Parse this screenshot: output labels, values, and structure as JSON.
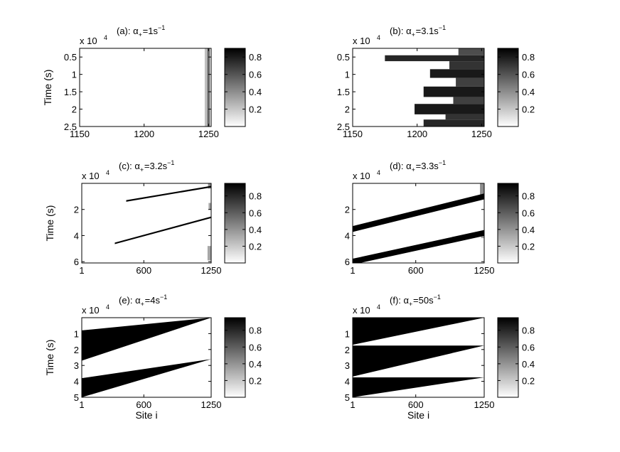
{
  "chart_data": [
    {
      "type": "heatmap",
      "panel": "a",
      "title": {
        "prefix": "(a): α",
        "subscript": "+",
        "value": "=1s",
        "exponent": "−1"
      },
      "exponent_label": {
        "base": "x 10",
        "power": "4"
      },
      "ylabel": "Time (s)",
      "xlabel": "",
      "xticks": [
        "1150",
        "1200",
        "1250"
      ],
      "yticks": [
        "0.5",
        "1",
        "1.5",
        "2",
        "2.5"
      ],
      "xlim": [
        1150,
        1252
      ],
      "ylim": [
        0.25,
        2.5
      ],
      "colorbar_ticks": [
        "0.8",
        "0.6",
        "0.4",
        "0.2"
      ],
      "colorbar_range": [
        0,
        0.9
      ],
      "strips": [
        {
          "t0": 0.25,
          "t1": 2.5,
          "x0": 1247,
          "x1": 1249,
          "density": 0.25
        },
        {
          "t0": 0.25,
          "t1": 2.5,
          "x0": 1249,
          "x1": 1251,
          "density": 0.6
        }
      ]
    },
    {
      "type": "heatmap",
      "panel": "b",
      "title": {
        "prefix": "(b): α",
        "subscript": "+",
        "value": "=3.1s",
        "exponent": "−1"
      },
      "exponent_label": {
        "base": "x 10",
        "power": "4"
      },
      "ylabel": "",
      "xlabel": "",
      "xticks": [
        "1150",
        "1200",
        "1250"
      ],
      "yticks": [
        "0.5",
        "1",
        "1.5",
        "2",
        "2.5"
      ],
      "xlim": [
        1150,
        1252
      ],
      "ylim": [
        0.25,
        2.5
      ],
      "colorbar_ticks": [
        "0.8",
        "0.6",
        "0.4",
        "0.2"
      ],
      "colorbar_range": [
        0,
        0.9
      ],
      "strips": [
        {
          "t0": 0.25,
          "t1": 0.45,
          "x0": 1232,
          "x1": 1252,
          "density": 0.7
        },
        {
          "t0": 0.45,
          "t1": 0.62,
          "x0": 1175,
          "x1": 1252,
          "density": 0.85
        },
        {
          "t0": 0.62,
          "t1": 0.85,
          "x0": 1225,
          "x1": 1252,
          "density": 0.8
        },
        {
          "t0": 0.85,
          "t1": 1.1,
          "x0": 1210,
          "x1": 1252,
          "density": 0.9
        },
        {
          "t0": 1.1,
          "t1": 1.35,
          "x0": 1230,
          "x1": 1252,
          "density": 0.75
        },
        {
          "t0": 1.35,
          "t1": 1.65,
          "x0": 1205,
          "x1": 1252,
          "density": 0.9
        },
        {
          "t0": 1.65,
          "t1": 1.85,
          "x0": 1228,
          "x1": 1252,
          "density": 0.75
        },
        {
          "t0": 1.85,
          "t1": 2.15,
          "x0": 1198,
          "x1": 1252,
          "density": 0.9
        },
        {
          "t0": 2.15,
          "t1": 2.3,
          "x0": 1222,
          "x1": 1252,
          "density": 0.8
        },
        {
          "t0": 2.3,
          "t1": 2.5,
          "x0": 1205,
          "x1": 1252,
          "density": 0.85
        }
      ]
    },
    {
      "type": "heatmap",
      "panel": "c",
      "title": {
        "prefix": "(c): α",
        "subscript": "+",
        "value": "=3.2s",
        "exponent": "−1"
      },
      "exponent_label": {
        "base": "x 10",
        "power": "4"
      },
      "ylabel": "Time (s)",
      "xlabel": "",
      "xticks": [
        "1",
        "600",
        "1250"
      ],
      "yticks": [
        "2",
        "4",
        "6"
      ],
      "xlim": [
        1,
        1250
      ],
      "ylim": [
        0,
        6.1
      ],
      "colorbar_ticks": [
        "0.8",
        "0.6",
        "0.4",
        "0.2"
      ],
      "colorbar_range": [
        0,
        0.95
      ],
      "bands": [
        {
          "x0": 430,
          "t_start": 1.35,
          "x1": 1250,
          "t_end": 0.25,
          "thickness": 0.12
        },
        {
          "x0": 320,
          "t_start": 4.6,
          "x1": 1250,
          "t_end": 2.6,
          "thickness": 0.12
        }
      ],
      "strips": [
        {
          "t0": 0.0,
          "t1": 0.4,
          "x0": 1220,
          "x1": 1250,
          "density": 0.45
        },
        {
          "t0": 1.5,
          "t1": 2.0,
          "x0": 1225,
          "x1": 1250,
          "density": 0.35
        },
        {
          "t0": 4.8,
          "t1": 5.9,
          "x0": 1215,
          "x1": 1250,
          "density": 0.35
        }
      ]
    },
    {
      "type": "heatmap",
      "panel": "d",
      "title": {
        "prefix": "(d): α",
        "subscript": "+",
        "value": "=3.3s",
        "exponent": "−1"
      },
      "exponent_label": {
        "base": "x 10",
        "power": "4"
      },
      "ylabel": "",
      "xlabel": "",
      "xticks": [
        "1",
        "600",
        "1250"
      ],
      "yticks": [
        "2",
        "4",
        "6"
      ],
      "xlim": [
        1,
        1250
      ],
      "ylim": [
        0,
        6.1
      ],
      "colorbar_ticks": [
        "0.8",
        "0.6",
        "0.4",
        "0.2"
      ],
      "colorbar_range": [
        0,
        0.95
      ],
      "bands": [
        {
          "x0": 1,
          "t_start": 3.5,
          "x1": 1250,
          "t_end": 1.0,
          "thickness": 0.45
        },
        {
          "x0": 1,
          "t_start": 6.0,
          "x1": 1250,
          "t_end": 3.8,
          "thickness": 0.45
        }
      ],
      "strips": [
        {
          "t0": 0.0,
          "t1": 1.0,
          "x0": 1210,
          "x1": 1250,
          "density": 0.45
        },
        {
          "t0": 3.7,
          "t1": 4.2,
          "x0": 1220,
          "x1": 1250,
          "density": 0.35
        }
      ]
    },
    {
      "type": "heatmap",
      "panel": "e",
      "title": {
        "prefix": "(e): α",
        "subscript": "+",
        "value": "=4s",
        "exponent": "−1"
      },
      "exponent_label": {
        "base": "x 10",
        "power": "4"
      },
      "ylabel": "Time (s)",
      "xlabel": "Site i",
      "xticks": [
        "1",
        "600",
        "1250"
      ],
      "yticks": [
        "1",
        "2",
        "3",
        "4",
        "5"
      ],
      "xlim": [
        1,
        1250
      ],
      "ylim": [
        0,
        5
      ],
      "colorbar_ticks": [
        "0.8",
        "0.6",
        "0.4",
        "0.2"
      ],
      "colorbar_range": [
        0,
        0.95
      ],
      "wedges": [
        {
          "x0": 1,
          "x1": 1250,
          "top_t0": 0.8,
          "top_t1": 0.0,
          "bot_t0": 2.7,
          "bot_t1": 0.0
        },
        {
          "x0": 1,
          "x1": 1250,
          "top_t0": 3.8,
          "top_t1": 2.6,
          "bot_t0": 5.0,
          "bot_t1": 2.6
        }
      ]
    },
    {
      "type": "heatmap",
      "panel": "f",
      "title": {
        "prefix": "(f): α",
        "subscript": "+",
        "value": "=50s",
        "exponent": "−1"
      },
      "exponent_label": {
        "base": "x 10",
        "power": "4"
      },
      "ylabel": "",
      "xlabel": "Site i",
      "xticks": [
        "1",
        "600",
        "1250"
      ],
      "yticks": [
        "1",
        "2",
        "3",
        "4",
        "5"
      ],
      "xlim": [
        1,
        1250
      ],
      "ylim": [
        0,
        5
      ],
      "colorbar_ticks": [
        "0.8",
        "0.6",
        "0.4",
        "0.2"
      ],
      "colorbar_range": [
        0,
        0.95
      ],
      "wedges": [
        {
          "x0": 1,
          "x1": 1250,
          "top_t0": 0.0,
          "top_t1": 0.0,
          "bot_t0": 1.7,
          "bot_t1": 0.0
        },
        {
          "x0": 1,
          "x1": 1250,
          "top_t0": 1.75,
          "top_t1": 1.75,
          "bot_t0": 3.7,
          "bot_t1": 1.75
        },
        {
          "x0": 1,
          "x1": 1250,
          "top_t0": 3.75,
          "top_t1": 3.75,
          "bot_t0": 5.0,
          "bot_t1": 3.75
        }
      ]
    }
  ]
}
